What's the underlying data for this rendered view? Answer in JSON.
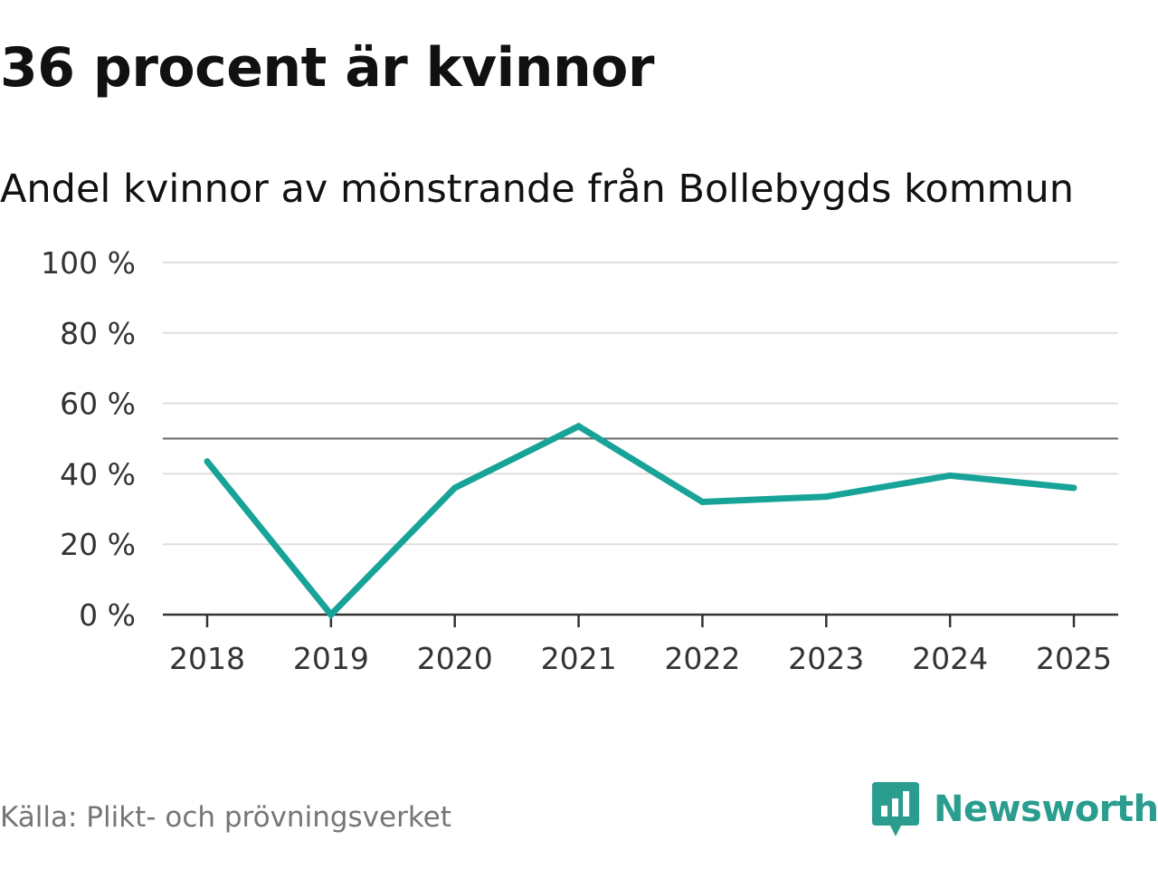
{
  "header": {
    "title": "36 procent är kvinnor",
    "subtitle": "Andel kvinnor av mönstrande från Bollebygds kommun"
  },
  "footer": {
    "source": "Källa: Plikt- och prövningsverket",
    "brand_name": "Newsworthy",
    "brand_color": "#2a9d8f",
    "brand_icon": "bar-chart-speech-bubble-icon"
  },
  "colors": {
    "line": "#17a398",
    "grid": "#dddddd",
    "reference_line": "#666666",
    "axis": "#333333"
  },
  "chart_data": {
    "type": "line",
    "title": "36 procent är kvinnor",
    "subtitle": "Andel kvinnor av mönstrande från Bollebygds kommun",
    "xlabel": "",
    "ylabel": "",
    "categories": [
      "2018",
      "2019",
      "2020",
      "2021",
      "2022",
      "2023",
      "2024",
      "2025"
    ],
    "series": [
      {
        "name": "Andel kvinnor",
        "values": [
          43.5,
          0,
          36,
          53.5,
          32,
          33.5,
          39.5,
          36
        ]
      }
    ],
    "ylim": [
      0,
      100
    ],
    "yticks": [
      0,
      20,
      40,
      60,
      80,
      100
    ],
    "ytick_labels": [
      "0 %",
      "20 %",
      "40 %",
      "60 %",
      "80 %",
      "100 %"
    ],
    "reference_line": 50,
    "grid": true,
    "legend": "none"
  }
}
